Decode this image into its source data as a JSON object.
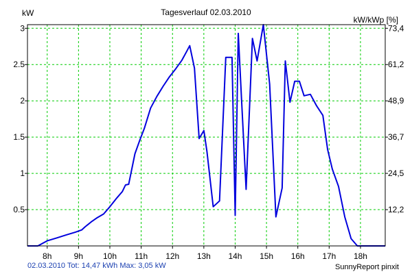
{
  "chart_data": {
    "type": "line",
    "title": "Tagesverlauf 02.03.2010",
    "ylabel_left": "kW",
    "ylabel_right": "kW/kWp [%]",
    "xlim": [
      7.37,
      18.79
    ],
    "ylim": [
      0,
      3.05
    ],
    "x_ticks": [
      8,
      9,
      10,
      11,
      12,
      13,
      14,
      15,
      16,
      17,
      18
    ],
    "x_tick_labels": [
      "8h",
      "9h",
      "10h",
      "11h",
      "12h",
      "13h",
      "14h",
      "15h",
      "16h",
      "17h",
      "18h"
    ],
    "y_ticks": [
      0.5,
      1,
      1.5,
      2,
      2.5,
      3
    ],
    "y_tick_labels": [
      "0.5",
      "1",
      "1.5",
      "2",
      "2.5",
      "3"
    ],
    "y2_ticks": [
      0.5,
      1,
      1.5,
      2,
      2.5,
      3
    ],
    "y2_tick_labels": [
      "12,2",
      "24,5",
      "36,7",
      "48,9",
      "61,2",
      "73,4"
    ],
    "grid": true,
    "color": "#0000dd",
    "series": [
      {
        "x": [
          7.37,
          7.7,
          8.0,
          8.3,
          8.6,
          8.9,
          9.1,
          9.2,
          9.4,
          9.6,
          9.8,
          10.0,
          10.2,
          10.4,
          10.5,
          10.6,
          10.8,
          10.95,
          11.1,
          11.3,
          11.5,
          11.7,
          11.9,
          12.1,
          12.3,
          12.45,
          12.55,
          12.7,
          12.85,
          13.0,
          13.1,
          13.3,
          13.5,
          13.7,
          13.9,
          14.0,
          14.1,
          14.2,
          14.35,
          14.55,
          14.7,
          14.9,
          15.1,
          15.3,
          15.5,
          15.6,
          15.75,
          15.9,
          16.05,
          16.2,
          16.4,
          16.6,
          16.8,
          16.95,
          17.1,
          17.3,
          17.5,
          17.7,
          17.9,
          18.1,
          18.3,
          18.5,
          18.79
        ],
        "y": [
          0.0,
          0.0,
          0.07,
          0.11,
          0.15,
          0.19,
          0.22,
          0.26,
          0.33,
          0.39,
          0.44,
          0.54,
          0.65,
          0.75,
          0.84,
          0.85,
          1.27,
          1.45,
          1.62,
          1.9,
          2.06,
          2.2,
          2.33,
          2.44,
          2.56,
          2.68,
          2.76,
          2.45,
          1.48,
          1.59,
          1.3,
          0.54,
          0.62,
          2.6,
          2.6,
          0.42,
          2.93,
          2.05,
          0.78,
          2.86,
          2.55,
          3.05,
          2.23,
          0.4,
          0.8,
          2.55,
          1.98,
          2.27,
          2.27,
          2.07,
          2.09,
          1.93,
          1.8,
          1.33,
          1.06,
          0.82,
          0.4,
          0.1,
          0.0,
          0.0,
          0.0,
          0.0,
          0.0
        ]
      }
    ]
  },
  "footer": {
    "summary": "02.03.2010 Tot: 14,47 kWh Max: 3,05 kW",
    "brand": "SunnyReport pinxit"
  }
}
